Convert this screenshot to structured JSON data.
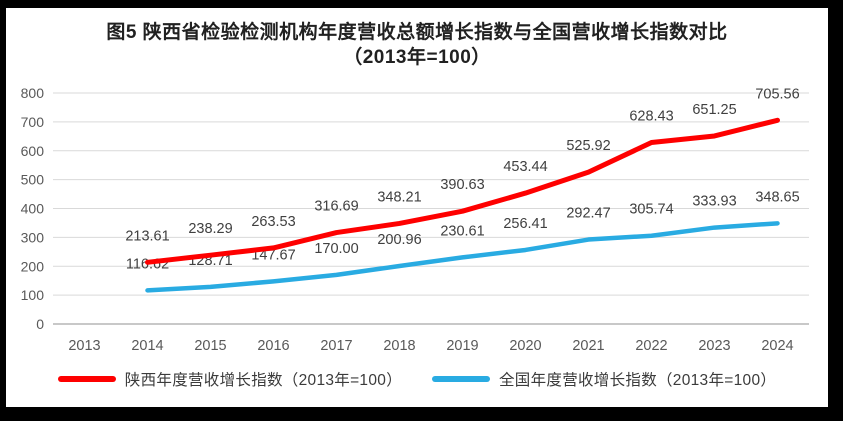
{
  "window": {
    "frame_color": "#000000",
    "canvas_background": "#ffffff"
  },
  "figure": {
    "title_line1": "图5  陕西省检验检测机构年度营收总额增长指数与全国营收增长指数对比",
    "title_line2": "（2013年=100）"
  },
  "chart_data": {
    "type": "line",
    "title": "图5 陕西省检验检测机构年度营收总额增长指数与全国营收增长指数对比（2013年=100）",
    "categories": [
      "2013",
      "2014",
      "2015",
      "2016",
      "2017",
      "2018",
      "2019",
      "2020",
      "2021",
      "2022",
      "2023",
      "2024"
    ],
    "series": [
      {
        "id": "shaanxi",
        "name": "陕西年度营收增长指数（2013年=100）",
        "color": "#FE0000",
        "line_width": 5,
        "values": [
          null,
          213.61,
          238.29,
          263.53,
          316.69,
          348.21,
          390.63,
          453.44,
          525.92,
          628.43,
          651.25,
          705.56
        ],
        "labels": [
          "",
          "213.61",
          "238.29",
          "263.53",
          "316.69",
          "348.21",
          "390.63",
          "453.44",
          "525.92",
          "628.43",
          "651.25",
          "705.56"
        ]
      },
      {
        "id": "national",
        "name": "全国年度营收增长指数（2013年=100）",
        "color": "#29ABE2",
        "line_width": 4.5,
        "values": [
          null,
          116.62,
          128.71,
          147.67,
          170.0,
          200.96,
          230.61,
          256.41,
          292.47,
          305.74,
          333.93,
          348.65
        ],
        "labels": [
          "",
          "116.62",
          "128.71",
          "147.67",
          "170.00",
          "200.96",
          "230.61",
          "256.41",
          "292.47",
          "305.74",
          "333.93",
          "348.65"
        ]
      }
    ],
    "xlabel": "",
    "ylabel": "",
    "ylim": [
      0,
      800
    ],
    "yticks": [
      0,
      100,
      200,
      300,
      400,
      500,
      600,
      700,
      800
    ],
    "grid": "horizontal-gridlines-on",
    "legend_position": "bottom",
    "data_labels": "above-points",
    "gridline_color": "#D9D9D9",
    "axis_line_color": "#A6A6A6",
    "tick_label_color": "#595959",
    "data_label_color": "#404040"
  }
}
